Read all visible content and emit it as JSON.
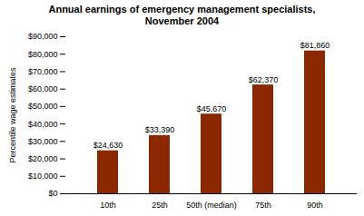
{
  "chart_data": {
    "type": "bar",
    "title": "Annual earnings of emergency management specialists,\nNovember 2004",
    "categories": [
      "10th",
      "25th",
      "50th (median)",
      "75th",
      "90th"
    ],
    "values": [
      24630,
      33390,
      45670,
      62370,
      81860
    ],
    "value_labels": [
      "$24,630",
      "$33,390",
      "$45,670",
      "$62,370",
      "$81,860"
    ],
    "data_labels": true,
    "color": "#8B2800",
    "ylabel": "Percentile wage estimates",
    "ylim": [
      0,
      90000
    ],
    "yticks": [
      {
        "value": 0,
        "label": "$0"
      },
      {
        "value": 10000,
        "label": "$10,000"
      },
      {
        "value": 20000,
        "label": "$20,000"
      },
      {
        "value": 30000,
        "label": "$30,000"
      },
      {
        "value": 40000,
        "label": "$40,000"
      },
      {
        "value": 50000,
        "label": "$50,000"
      },
      {
        "value": 60000,
        "label": "$60,000"
      },
      {
        "value": 70000,
        "label": "$70,000"
      },
      {
        "value": 80000,
        "label": "$80,000"
      },
      {
        "value": 90000,
        "label": "$90,000"
      }
    ],
    "grid": false
  }
}
